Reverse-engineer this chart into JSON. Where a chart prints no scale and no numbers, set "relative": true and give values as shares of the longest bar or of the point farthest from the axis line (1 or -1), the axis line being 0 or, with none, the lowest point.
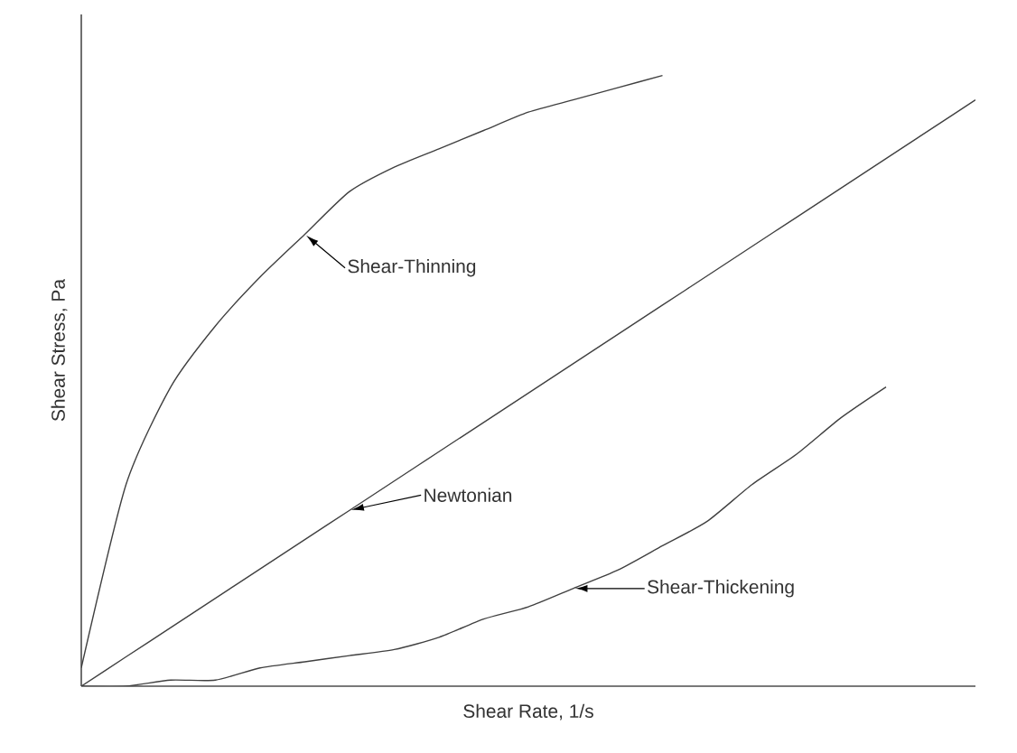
{
  "chart_data": {
    "type": "line",
    "relative": true,
    "xlabel": "Shear Rate, 1/s",
    "ylabel": "Shear Stress, Pa",
    "tick_labels": false,
    "marker": "none",
    "line_style": "solid",
    "categories": [
      null,
      null,
      null,
      null,
      null,
      null,
      null,
      null,
      null,
      null,
      null,
      null,
      null,
      null,
      null,
      null,
      null,
      null,
      null,
      null,
      null
    ],
    "series": [
      {
        "color": "#404040",
        "values": [
          0.03,
          0.33,
          0.49,
          0.59,
          0.67,
          0.74,
          0.81,
          0.85,
          0.88,
          0.91,
          0.94,
          0.96,
          0.98,
          1.0,
          null,
          null,
          null,
          null,
          null,
          null,
          null
        ]
      },
      {
        "color": "#404040",
        "values": [
          0,
          0.048,
          0.096,
          0.144,
          0.192,
          0.24,
          0.288,
          0.336,
          0.384,
          0.432,
          0.48,
          0.528,
          0.576,
          0.624,
          0.672,
          0.72,
          0.768,
          0.816,
          0.864,
          0.912,
          0.96
        ]
      },
      {
        "color": "#404040",
        "values": [
          0,
          0.0,
          0.01,
          0.01,
          0.03,
          0.04,
          0.05,
          0.06,
          0.08,
          0.11,
          0.13,
          0.16,
          0.19,
          0.23,
          0.27,
          0.33,
          0.38,
          0.44,
          0.49,
          null,
          null
        ]
      }
    ],
    "annotations": [
      "Shear-Thinning",
      "Newtonian",
      "Shear-Thickening"
    ]
  }
}
